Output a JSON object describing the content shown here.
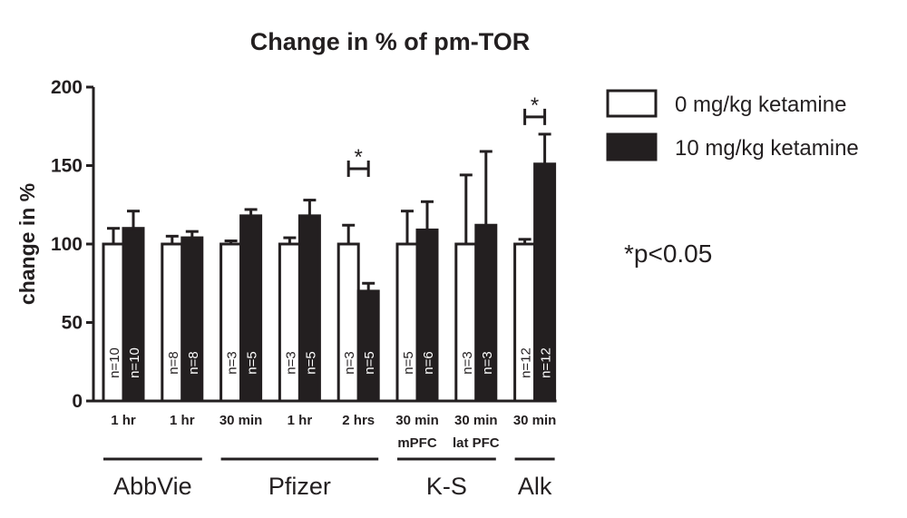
{
  "chart_data": {
    "type": "bar",
    "title": "Change in % of pm-TOR",
    "ylabel": "change in %",
    "ylim": [
      0,
      200
    ],
    "yticks": [
      0,
      50,
      100,
      150,
      200
    ],
    "series": [
      {
        "name": "0 mg/kg ketamine",
        "color": "#ffffff"
      },
      {
        "name": "10 mg/kg ketamine",
        "color": "#231f20"
      }
    ],
    "categories": [
      {
        "label": "1 hr",
        "label2": "",
        "values": [
          100,
          110
        ],
        "errors": [
          10,
          11
        ],
        "n": [
          "n=10",
          "n=10"
        ]
      },
      {
        "label": "1 hr",
        "label2": "",
        "values": [
          100,
          104
        ],
        "errors": [
          5,
          4
        ],
        "n": [
          "n=8",
          "n=8"
        ]
      },
      {
        "label": "30 min",
        "label2": "",
        "values": [
          100,
          118
        ],
        "errors": [
          2,
          4
        ],
        "n": [
          "n=3",
          "n=5"
        ]
      },
      {
        "label": "1 hr",
        "label2": "",
        "values": [
          100,
          118
        ],
        "errors": [
          4,
          10
        ],
        "n": [
          "n=3",
          "n=5"
        ]
      },
      {
        "label": "2 hrs",
        "label2": "",
        "values": [
          100,
          70
        ],
        "errors": [
          12,
          5
        ],
        "n": [
          "n=3",
          "n=5"
        ]
      },
      {
        "label": "30 min",
        "label2": "mPFC",
        "values": [
          100,
          109
        ],
        "errors": [
          21,
          18
        ],
        "n": [
          "n=5",
          "n=6"
        ]
      },
      {
        "label": "30 min",
        "label2": "lat PFC",
        "values": [
          100,
          112
        ],
        "errors": [
          44,
          47
        ],
        "n": [
          "n=3",
          "n=3"
        ]
      },
      {
        "label": "30 min",
        "label2": "",
        "values": [
          100,
          151
        ],
        "errors": [
          3,
          19
        ],
        "n": [
          "n=12",
          "n=12"
        ]
      }
    ],
    "groups": [
      {
        "label": "AbbVie",
        "from": 0,
        "to": 1
      },
      {
        "label": "Pfizer",
        "from": 2,
        "to": 4
      },
      {
        "label": "K-S",
        "from": 5,
        "to": 6
      },
      {
        "label": "Alk",
        "from": 7,
        "to": 7
      }
    ],
    "significance": [
      {
        "category": 4,
        "symbol": "*",
        "level": 148
      },
      {
        "category": 7,
        "symbol": "*",
        "level": 181
      }
    ],
    "annotation": "*p<0.05",
    "legend_position": "top-right"
  }
}
